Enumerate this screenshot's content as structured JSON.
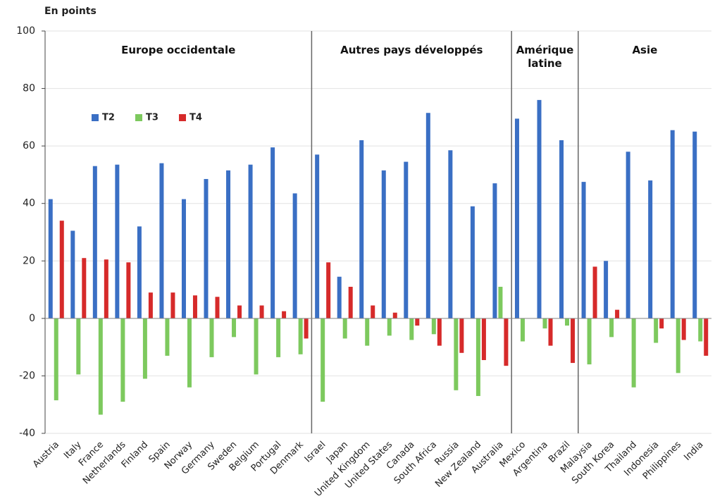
{
  "chart_data": {
    "type": "bar",
    "title": "En points",
    "categories": [
      "Austria",
      "Italy",
      "France",
      "Netherlands",
      "Finland",
      "Spain",
      "Norway",
      "Germany",
      "Sweden",
      "Belgium",
      "Portugal",
      "Denmark",
      "Israel",
      "Japan",
      "United Kingdom",
      "United States",
      "Canada",
      "South Africa",
      "Russia",
      "New Zealand",
      "Australia",
      "Mexico",
      "Argentina",
      "Brazil",
      "Malaysia",
      "South Korea",
      "Thailand",
      "Indonesia",
      "Philippines",
      "India"
    ],
    "series": [
      {
        "name": "T2",
        "color": "#3a6fc4",
        "values": [
          41.5,
          30.5,
          53,
          53.5,
          32,
          54,
          41.5,
          48.5,
          51.5,
          53.5,
          59.5,
          43.5,
          57,
          14.5,
          62,
          51.5,
          54.5,
          71.5,
          58.5,
          39,
          47,
          69.5,
          76,
          62,
          47.5,
          20,
          58,
          48,
          65.5,
          65
        ]
      },
      {
        "name": "T3",
        "color": "#7dc95e",
        "values": [
          -28.5,
          -19.5,
          -33.5,
          -29,
          -21,
          -13,
          -24,
          -13.5,
          -6.5,
          -19.5,
          -13.5,
          -12.5,
          -29,
          -7,
          -9.5,
          -6,
          -7.5,
          -5.5,
          -25,
          -27,
          11,
          -8,
          -3.5,
          -2.5,
          -16,
          -6.5,
          -24,
          -8.5,
          -19,
          -8
        ]
      },
      {
        "name": "T4",
        "color": "#d62a2a",
        "values": [
          34,
          21,
          20.5,
          19.5,
          9,
          9,
          8,
          7.5,
          4.5,
          4.5,
          2.5,
          -7,
          19.5,
          11,
          4.5,
          2,
          -2.5,
          -9.5,
          -12,
          -14.5,
          -16.5,
          null,
          -9.5,
          -15.5,
          18,
          3,
          null,
          -3.5,
          -7.5,
          -13
        ]
      }
    ],
    "groups": [
      {
        "label": "Europe occidentale",
        "from": "Austria",
        "to": "Denmark"
      },
      {
        "label": "Autres pays développés",
        "from": "Israel",
        "to": "Australia"
      },
      {
        "label": "Amérique latine",
        "from": "Mexico",
        "to": "Brazil"
      },
      {
        "label": "Asie",
        "from": "Malaysia",
        "to": "India"
      }
    ],
    "ylim": [
      -40,
      100
    ],
    "yticks": [
      -40,
      -20,
      0,
      20,
      40,
      60,
      80,
      100
    ],
    "grid": true
  }
}
